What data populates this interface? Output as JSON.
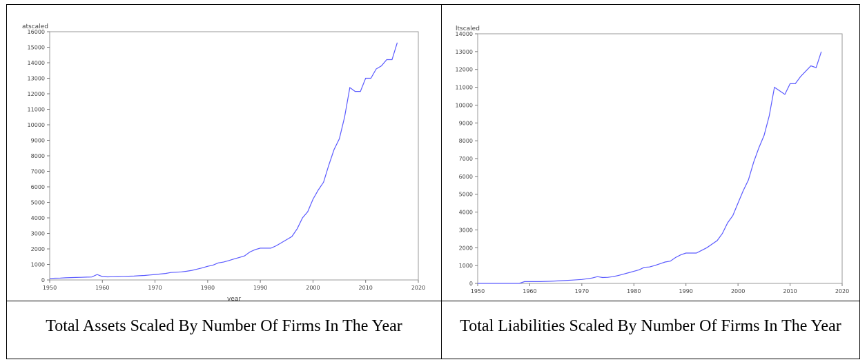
{
  "chart_data": [
    {
      "type": "line",
      "ylabel": "atscaled",
      "xlabel": "year",
      "xlim": [
        1950,
        2020
      ],
      "ylim": [
        0,
        16000
      ],
      "xticks": [
        "1950",
        "1960",
        "1970",
        "1980",
        "1990",
        "2000",
        "2010",
        "2020"
      ],
      "yticks": [
        "0",
        "1000",
        "2000",
        "3000",
        "4000",
        "5000",
        "6000",
        "7000",
        "8000",
        "9000",
        "10000",
        "11000",
        "12000",
        "13000",
        "14000",
        "15000",
        "16000"
      ],
      "grid": false,
      "line_color": "#5a5aff",
      "x": [
        1950,
        1951,
        1952,
        1953,
        1954,
        1955,
        1956,
        1957,
        1958,
        1959,
        1960,
        1961,
        1962,
        1963,
        1964,
        1965,
        1966,
        1967,
        1968,
        1969,
        1970,
        1971,
        1972,
        1973,
        1974,
        1975,
        1976,
        1977,
        1978,
        1979,
        1980,
        1981,
        1982,
        1983,
        1984,
        1985,
        1986,
        1987,
        1988,
        1989,
        1990,
        1991,
        1992,
        1993,
        1994,
        1995,
        1996,
        1997,
        1998,
        1999,
        2000,
        2001,
        2002,
        2003,
        2004,
        2005,
        2006,
        2007,
        2008,
        2009,
        2010,
        2011,
        2012,
        2013,
        2014,
        2015,
        2016
      ],
      "y": [
        100,
        110,
        120,
        140,
        150,
        160,
        170,
        180,
        190,
        350,
        220,
        200,
        210,
        220,
        230,
        240,
        250,
        270,
        290,
        320,
        350,
        380,
        420,
        480,
        500,
        520,
        560,
        620,
        700,
        780,
        880,
        950,
        1100,
        1150,
        1250,
        1350,
        1450,
        1550,
        1800,
        1950,
        2050,
        2050,
        2050,
        2200,
        2400,
        2600,
        2800,
        3300,
        4000,
        4400,
        5200,
        5800,
        6300,
        7400,
        8400,
        9100,
        10500,
        12400,
        12150,
        12150,
        13000,
        13000,
        13600,
        13800,
        14200,
        14200,
        15300
      ]
    },
    {
      "type": "line",
      "ylabel": "ltscaled",
      "xlabel": "year",
      "xlim": [
        1950,
        2020
      ],
      "ylim": [
        0,
        14000
      ],
      "xticks": [
        "1950",
        "1960",
        "1970",
        "1980",
        "1990",
        "2000",
        "2010",
        "2020"
      ],
      "yticks": [
        "0",
        "1000",
        "2000",
        "3000",
        "4000",
        "5000",
        "6000",
        "7000",
        "8000",
        "9000",
        "10000",
        "11000",
        "12000",
        "13000",
        "14000"
      ],
      "grid": false,
      "line_color": "#5a5aff",
      "x": [
        1950,
        1952,
        1954,
        1956,
        1958,
        1959,
        1960,
        1962,
        1964,
        1966,
        1968,
        1970,
        1972,
        1973,
        1974,
        1975,
        1976,
        1977,
        1978,
        1979,
        1980,
        1981,
        1982,
        1983,
        1984,
        1985,
        1986,
        1987,
        1988,
        1989,
        1990,
        1991,
        1992,
        1993,
        1994,
        1995,
        1996,
        1997,
        1998,
        1999,
        2000,
        2001,
        2002,
        2003,
        2004,
        2005,
        2006,
        2007,
        2008,
        2009,
        2010,
        2011,
        2012,
        2013,
        2014,
        2015,
        2016
      ],
      "y": [
        0,
        0,
        0,
        0,
        0,
        100,
        100,
        100,
        120,
        150,
        180,
        220,
        300,
        380,
        330,
        340,
        380,
        440,
        520,
        600,
        680,
        760,
        900,
        920,
        1000,
        1100,
        1200,
        1250,
        1450,
        1600,
        1700,
        1700,
        1700,
        1850,
        2000,
        2200,
        2400,
        2800,
        3400,
        3800,
        4500,
        5200,
        5800,
        6800,
        7600,
        8300,
        9400,
        11000,
        10800,
        10600,
        11200,
        11200,
        11600,
        11900,
        12200,
        12100,
        13000
      ]
    }
  ],
  "captions": {
    "left": "Total Assets Scaled By Number Of Firms In The Year",
    "right": "Total Liabilities Scaled By Number Of Firms In The Year"
  }
}
